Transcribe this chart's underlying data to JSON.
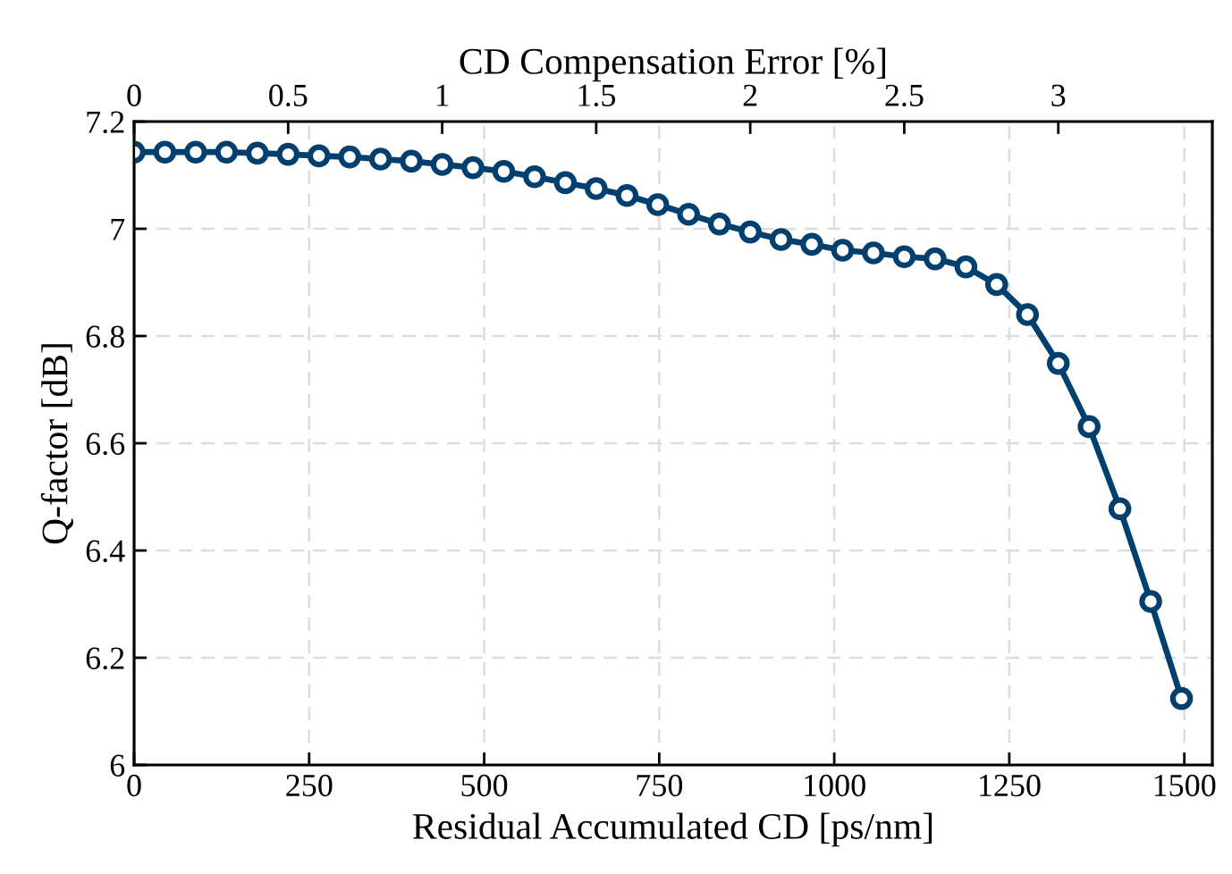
{
  "chart_data": {
    "type": "line",
    "xlabel": "Residual Accumulated CD [ps/nm]",
    "ylabel": "Q-factor [dB]",
    "x2label": "CD Compensation Error [%]",
    "x": [
      0,
      44,
      88,
      132,
      176,
      220,
      264,
      308,
      352,
      396,
      440,
      484,
      528,
      572,
      616,
      660,
      704,
      748,
      792,
      836,
      880,
      924,
      968,
      1012,
      1056,
      1100,
      1144,
      1188,
      1232,
      1276,
      1320,
      1364,
      1408,
      1452,
      1496
    ],
    "series": [
      {
        "color": "#003f6e",
        "values": [
          7.143,
          7.143,
          7.143,
          7.143,
          7.141,
          7.139,
          7.136,
          7.134,
          7.13,
          7.126,
          7.12,
          7.114,
          7.107,
          7.097,
          7.086,
          7.075,
          7.062,
          7.045,
          7.027,
          7.009,
          6.994,
          6.98,
          6.971,
          6.96,
          6.955,
          6.948,
          6.944,
          6.929,
          6.896,
          6.84,
          6.749,
          6.631,
          6.478,
          6.305,
          6.124
        ]
      }
    ],
    "xlim": [
      0,
      1540
    ],
    "xticks": [
      0,
      250,
      500,
      750,
      1000,
      1250,
      1500
    ],
    "x2lim": [
      0,
      3.5
    ],
    "x2ticks": [
      0,
      0.5,
      1,
      1.5,
      2,
      2.5,
      3
    ],
    "ylim": [
      6,
      7.2
    ],
    "yticks": [
      6,
      6.2,
      6.4,
      6.6,
      6.8,
      7,
      7.2
    ],
    "grid": true,
    "marker": "circle",
    "line_style": "solid",
    "legend": false
  }
}
